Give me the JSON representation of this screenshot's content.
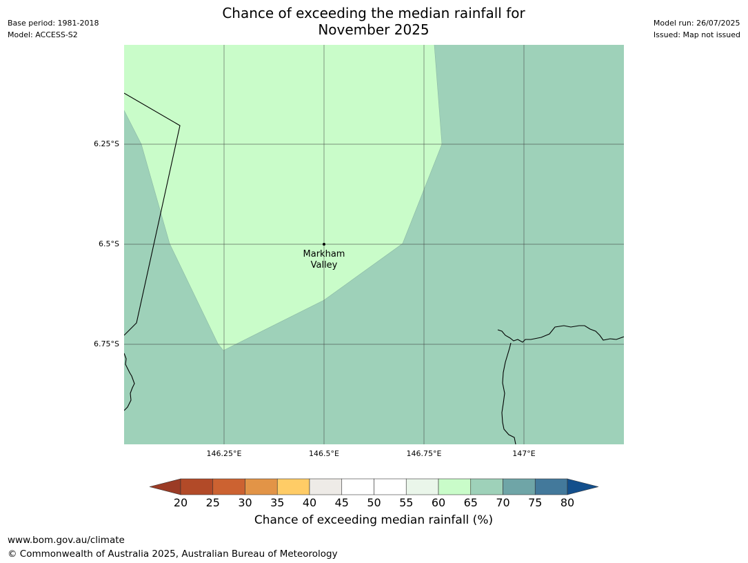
{
  "header": {
    "title_line1": "Chance of exceeding the median rainfall for",
    "title_line2": "November 2025",
    "base_period": "Base period: 1981-2018",
    "model": "Model: ACCESS-S2",
    "model_run": "Model run: 26/07/2025",
    "issued": "Issued: Map not issued"
  },
  "map": {
    "place_label_line1": "Markham",
    "place_label_line2": "Valley",
    "lat_labels": [
      "6.25°S",
      "6.5°S",
      "6.75°S"
    ],
    "lon_labels": [
      "146.25°E",
      "146.5°E",
      "146.75°E",
      "147°E"
    ],
    "region_colors": {
      "60-65": "#c9fcc9",
      "65-70": "#9ed1b9"
    }
  },
  "colorbar": {
    "title": "Chance of exceeding median rainfall (%)",
    "ticks": [
      "20",
      "25",
      "30",
      "35",
      "40",
      "45",
      "50",
      "55",
      "60",
      "65",
      "70",
      "75",
      "80"
    ],
    "colors": [
      "#b24a28",
      "#cc6231",
      "#e29447",
      "#ffcc66",
      "#eeebe7",
      "#ffffff",
      "#ffffff",
      "#eaf6ea",
      "#c9fcc9",
      "#9ed1b9",
      "#6fa5a7",
      "#43799b"
    ],
    "under_color": "#9b3b25",
    "over_color": "#134f8c"
  },
  "footer": {
    "url": "www.bom.gov.au/climate",
    "copyright": "© Commonwealth of Australia 2025, Australian Bureau of Meteorology"
  }
}
